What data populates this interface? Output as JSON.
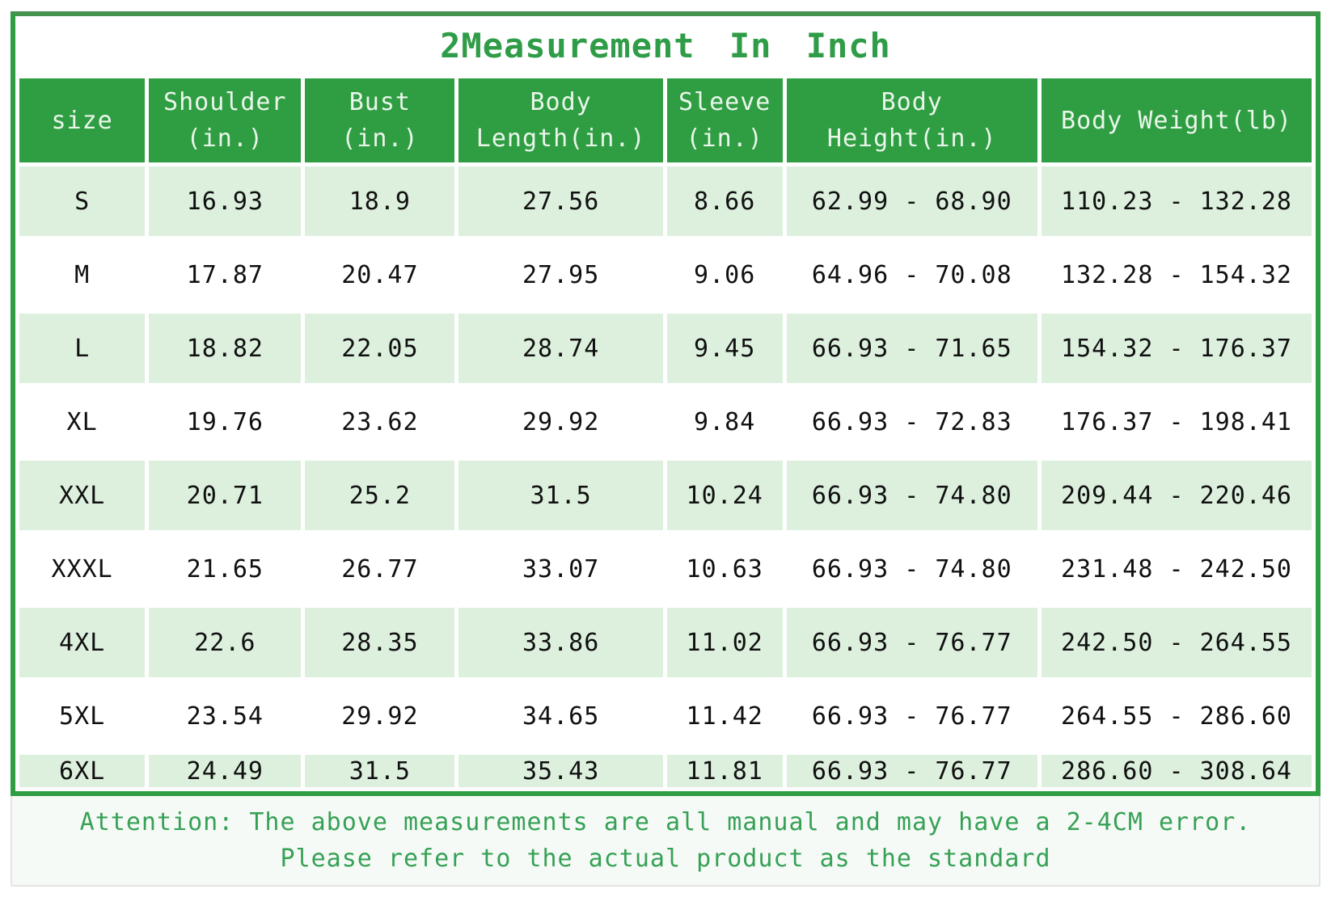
{
  "title": "2Measurement In Inch",
  "colors": {
    "header_green": "#2f9e43",
    "frame_green": "#2f9e43",
    "top_rule_green": "#45924f",
    "row_light_green": "#ddf0de",
    "row_white": "#ffffff",
    "title_green": "#2f9c47",
    "attention_green": "#36a156",
    "cell_text": "#101010",
    "header_text": "#eaf6ea"
  },
  "table": {
    "headers": [
      {
        "name": "size",
        "lines": [
          "size"
        ]
      },
      {
        "name": "shoulder",
        "lines": [
          "Shoulder",
          "(in.)"
        ]
      },
      {
        "name": "bust",
        "lines": [
          "Bust",
          "(in.)"
        ]
      },
      {
        "name": "body-length",
        "lines": [
          "Body",
          "Length(in.)"
        ]
      },
      {
        "name": "sleeve",
        "lines": [
          "Sleeve",
          "(in.)"
        ]
      },
      {
        "name": "body-height",
        "lines": [
          "Body",
          "Height(in.)"
        ]
      },
      {
        "name": "body-weight",
        "lines": [
          "Body Weight(lb)"
        ]
      }
    ],
    "rows": [
      {
        "size": "S",
        "cells": [
          "16.93",
          "18.9",
          "27.56",
          "8.66",
          "62.99 - 68.90",
          "110.23 - 132.28"
        ]
      },
      {
        "size": "M",
        "cells": [
          "17.87",
          "20.47",
          "27.95",
          "9.06",
          "64.96 - 70.08",
          "132.28 - 154.32"
        ]
      },
      {
        "size": "L",
        "cells": [
          "18.82",
          "22.05",
          "28.74",
          "9.45",
          "66.93 - 71.65",
          "154.32 - 176.37"
        ]
      },
      {
        "size": "XL",
        "cells": [
          "19.76",
          "23.62",
          "29.92",
          "9.84",
          "66.93 - 72.83",
          "176.37 - 198.41"
        ]
      },
      {
        "size": "XXL",
        "cells": [
          "20.71",
          "25.2",
          "31.5",
          "10.24",
          "66.93 - 74.80",
          "209.44 - 220.46"
        ]
      },
      {
        "size": "XXXL",
        "cells": [
          "21.65",
          "26.77",
          "33.07",
          "10.63",
          "66.93 - 74.80",
          "231.48 - 242.50"
        ]
      },
      {
        "size": "4XL",
        "cells": [
          "22.6",
          "28.35",
          "33.86",
          "11.02",
          "66.93 - 76.77",
          "242.50 - 264.55"
        ]
      },
      {
        "size": "5XL",
        "cells": [
          "23.54",
          "29.92",
          "34.65",
          "11.42",
          "66.93 - 76.77",
          "264.55 - 286.60"
        ]
      },
      {
        "size": "6XL",
        "cells": [
          "24.49",
          "31.5",
          "35.43",
          "11.81",
          "66.93 - 76.77",
          "286.60 - 308.64"
        ]
      }
    ]
  },
  "attention": {
    "line1": "Attention: The above measurements are all manual and may have a 2-4CM error.",
    "line2": "Please refer to the actual product as the standard"
  },
  "chart_data": {
    "type": "table",
    "title": "2Measurement In Inch",
    "columns": [
      "size",
      "Shoulder (in.)",
      "Bust (in.)",
      "Body Length(in.)",
      "Sleeve (in.)",
      "Body Height(in.)",
      "Body Weight(lb)"
    ],
    "rows": [
      [
        "S",
        16.93,
        18.9,
        27.56,
        8.66,
        "62.99 - 68.90",
        "110.23 - 132.28"
      ],
      [
        "M",
        17.87,
        20.47,
        27.95,
        9.06,
        "64.96 - 70.08",
        "132.28 - 154.32"
      ],
      [
        "L",
        18.82,
        22.05,
        28.74,
        9.45,
        "66.93 - 71.65",
        "154.32 - 176.37"
      ],
      [
        "XL",
        19.76,
        23.62,
        29.92,
        9.84,
        "66.93 - 72.83",
        "176.37 - 198.41"
      ],
      [
        "XXL",
        20.71,
        25.2,
        31.5,
        10.24,
        "66.93 - 74.80",
        "209.44 - 220.46"
      ],
      [
        "XXXL",
        21.65,
        26.77,
        33.07,
        10.63,
        "66.93 - 74.80",
        "231.48 - 242.50"
      ],
      [
        "4XL",
        22.6,
        28.35,
        33.86,
        11.02,
        "66.93 - 76.77",
        "242.50 - 264.55"
      ],
      [
        "5XL",
        23.54,
        29.92,
        34.65,
        11.42,
        "66.93 - 76.77",
        "264.55 - 286.60"
      ],
      [
        "6XL",
        24.49,
        31.5,
        35.43,
        11.81,
        "66.93 - 76.77",
        "286.60 - 308.64"
      ]
    ],
    "notes": [
      "Attention: The above measurements are all manual and may have a 2-4CM error.",
      "Please refer to the actual product as the standard"
    ]
  }
}
